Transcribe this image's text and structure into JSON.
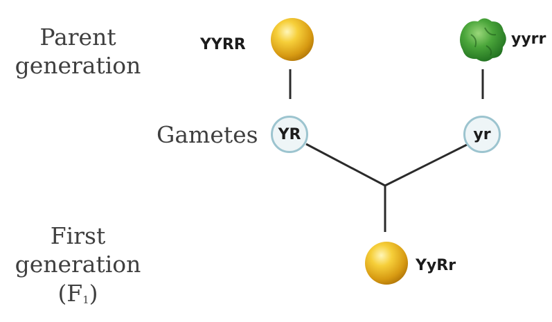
{
  "labels": {
    "parent_line1": "Parent",
    "parent_line2": "generation",
    "gametes": "Gametes",
    "first_line1": "First",
    "first_line2": "generation",
    "f1_open": "(F",
    "f1_sub": "1",
    "f1_close": ")"
  },
  "genotypes": {
    "parent_left": "YYRR",
    "parent_right": "yyrr",
    "gamete_left": "YR",
    "gamete_right": "yr",
    "offspring": "YyRr"
  },
  "colors": {
    "yellow_pea": "#e6b422",
    "green_pea": "#3f9a2f",
    "gamete_border": "#9cc4cf",
    "line": "#2a2a2a"
  }
}
